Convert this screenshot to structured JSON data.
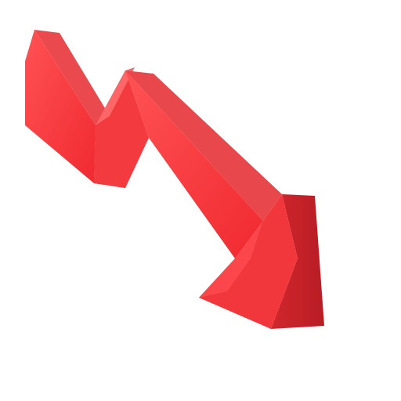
{
  "illustration": {
    "subject": "down-arrow-icon",
    "colors": {
      "background": "#ffffff",
      "arrow_face": "#f2383c",
      "arrow_face_light": "#ff5a5c",
      "arrow_side": "#c8242b",
      "arrow_top": "#e8484c"
    }
  }
}
